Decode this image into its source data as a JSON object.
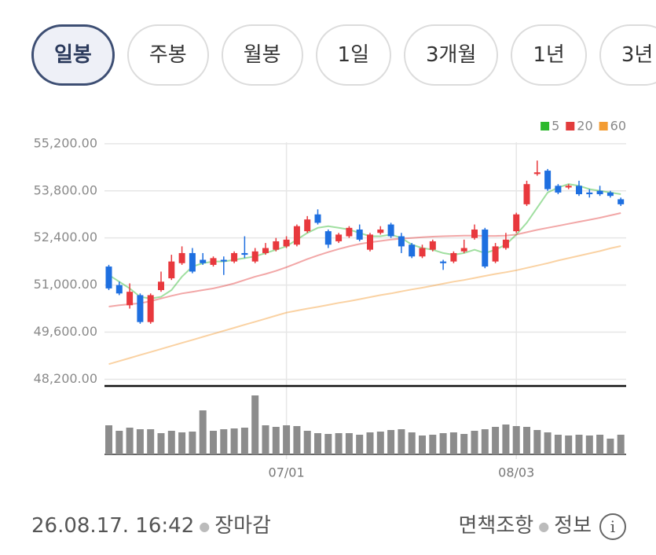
{
  "tabs": [
    "일봉",
    "주봉",
    "월봉",
    "1일",
    "3개월",
    "1년",
    "3년"
  ],
  "selected_tab": 0,
  "chart_data": {
    "type": "candlestick",
    "categories": [
      null,
      null,
      null,
      null,
      null,
      null,
      null,
      null,
      null,
      null,
      null,
      null,
      null,
      null,
      null,
      null,
      null,
      "07/01",
      null,
      null,
      null,
      null,
      null,
      null,
      null,
      null,
      null,
      null,
      null,
      null,
      null,
      null,
      null,
      null,
      null,
      null,
      null,
      null,
      null,
      "08/03",
      null,
      null,
      null,
      null,
      null,
      null,
      null,
      null,
      null,
      null
    ],
    "open": [
      51550,
      51000,
      50400,
      50700,
      49900,
      50850,
      51200,
      51650,
      51950,
      51750,
      51600,
      51750,
      51700,
      51950,
      51700,
      51950,
      52050,
      52150,
      52200,
      52600,
      53100,
      52600,
      52300,
      52450,
      52650,
      52050,
      52550,
      52800,
      52450,
      52200,
      51850,
      52050,
      51700,
      51700,
      52000,
      52400,
      52650,
      51700,
      52100,
      52600,
      53400,
      54300,
      54400,
      53950,
      53900,
      53950,
      53750,
      53800,
      53750,
      53550
    ],
    "high": [
      51600,
      51100,
      51050,
      50750,
      50750,
      51400,
      51900,
      52150,
      52100,
      51950,
      51850,
      51850,
      52000,
      52450,
      52100,
      52250,
      52400,
      52450,
      52800,
      53050,
      53250,
      52650,
      52550,
      52750,
      52800,
      52550,
      52750,
      52850,
      52550,
      52250,
      52200,
      52350,
      51750,
      52000,
      52350,
      52800,
      52700,
      52250,
      52550,
      53150,
      54100,
      54700,
      54450,
      54000,
      54000,
      54100,
      53850,
      53950,
      53800,
      53600
    ],
    "low": [
      50850,
      50700,
      50300,
      49850,
      49850,
      50800,
      51150,
      51600,
      51350,
      51600,
      51550,
      51300,
      51650,
      51800,
      51650,
      51900,
      52000,
      52100,
      52150,
      52550,
      52800,
      52100,
      52250,
      52400,
      52300,
      52000,
      52500,
      52400,
      51950,
      51800,
      51800,
      52000,
      51450,
      51650,
      51950,
      52350,
      51500,
      51650,
      52050,
      52550,
      53350,
      54250,
      53800,
      53700,
      53850,
      53650,
      53600,
      53650,
      53600,
      53350
    ],
    "close": [
      50900,
      50750,
      50800,
      49900,
      50700,
      51100,
      51700,
      51950,
      51400,
      51650,
      51800,
      51700,
      51950,
      51900,
      52000,
      52100,
      52300,
      52350,
      52750,
      52950,
      52850,
      52200,
      52500,
      52700,
      52350,
      52500,
      52650,
      52450,
      52150,
      51850,
      52100,
      52300,
      51650,
      51950,
      52100,
      52650,
      51550,
      52150,
      52350,
      53100,
      54000,
      54350,
      53850,
      53750,
      53950,
      53700,
      53700,
      53700,
      53650,
      53400
    ],
    "up_color": "#e8383d",
    "down_color": "#1e6fe0",
    "series": [
      {
        "name": "5",
        "color": "#2db92d",
        "values": [
          51300,
          51100,
          50900,
          50650,
          50600,
          50650,
          50850,
          51250,
          51550,
          51650,
          51700,
          51700,
          51750,
          51800,
          51850,
          51950,
          52050,
          52150,
          52350,
          52550,
          52700,
          52750,
          52700,
          52650,
          52550,
          52450,
          52450,
          52500,
          52400,
          52200,
          52100,
          52050,
          51950,
          51900,
          51950,
          52050,
          51950,
          52050,
          52200,
          52500,
          52850,
          53300,
          53750,
          53900,
          54000,
          53950,
          53850,
          53800,
          53750,
          53700
        ]
      },
      {
        "name": "20",
        "color": "#e23c3c",
        "values": [
          50360,
          50400,
          50430,
          50460,
          50520,
          50600,
          50680,
          50750,
          50800,
          50850,
          50900,
          50970,
          51050,
          51150,
          51250,
          51330,
          51420,
          51530,
          51650,
          51770,
          51880,
          51980,
          52070,
          52150,
          52220,
          52270,
          52310,
          52350,
          52380,
          52400,
          52420,
          52440,
          52450,
          52460,
          52470,
          52470,
          52460,
          52460,
          52470,
          52500,
          52570,
          52640,
          52700,
          52760,
          52820,
          52880,
          52940,
          53000,
          53070,
          53140
        ]
      },
      {
        "name": "60",
        "color": "#f39c33",
        "values": [
          48650,
          48740,
          48830,
          48920,
          49010,
          49100,
          49190,
          49280,
          49370,
          49460,
          49550,
          49640,
          49730,
          49820,
          49910,
          50000,
          50090,
          50180,
          50240,
          50300,
          50350,
          50410,
          50470,
          50520,
          50580,
          50640,
          50700,
          50750,
          50810,
          50870,
          50920,
          50980,
          51040,
          51100,
          51150,
          51210,
          51270,
          51330,
          51380,
          51440,
          51510,
          51580,
          51650,
          51730,
          51800,
          51870,
          51940,
          52010,
          52090,
          52160
        ]
      }
    ],
    "ylim": [
      48000,
      55500
    ],
    "yticks": [
      {
        "value": 48200,
        "label": "48,200.00"
      },
      {
        "value": 49600,
        "label": "49,600.00"
      },
      {
        "value": 51000,
        "label": "51,000.00"
      },
      {
        "value": 52400,
        "label": "52,400.00"
      },
      {
        "value": 53800,
        "label": "53,800.00"
      },
      {
        "value": 55200,
        "label": "55,200.00"
      }
    ],
    "grid": true,
    "legend": "top-right",
    "volume": {
      "color": "#8c8c8c",
      "ylim": [
        0,
        80
      ],
      "values": [
        37,
        30,
        34,
        32,
        32,
        27,
        30,
        28,
        29,
        56,
        30,
        32,
        33,
        34,
        75,
        37,
        35,
        37,
        36,
        30,
        27,
        26,
        27,
        27,
        25,
        28,
        29,
        31,
        32,
        28,
        24,
        25,
        27,
        28,
        26,
        30,
        32,
        35,
        38,
        36,
        35,
        31,
        28,
        25,
        24,
        25,
        24,
        25,
        20,
        25
      ]
    }
  },
  "footer": {
    "timestamp": "26.08.17. 16:42",
    "status": "장마감",
    "disclaimer": "면책조항",
    "info": "정보"
  }
}
